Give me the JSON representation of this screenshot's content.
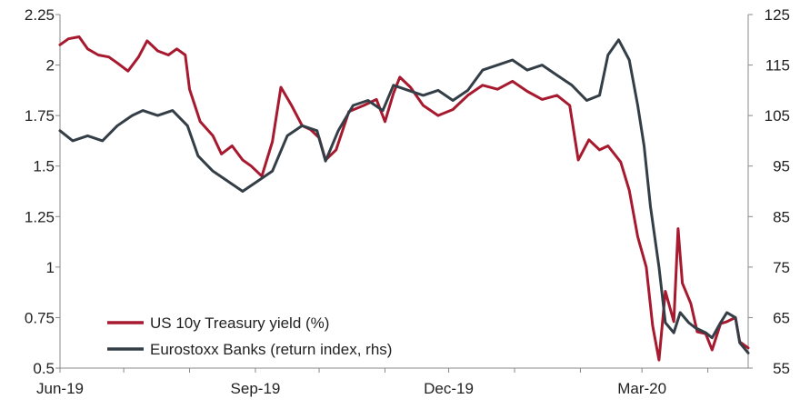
{
  "chart_data": {
    "type": "line",
    "title": "",
    "xlabel": "",
    "ylabel": "",
    "x_tick_labels": [
      "Jun-19",
      "Sep-19",
      "Dec-19",
      "Mar-20"
    ],
    "y_left": {
      "ylim": [
        0.5,
        2.25
      ],
      "ticks": [
        0.5,
        0.75,
        1,
        1.25,
        1.5,
        1.75,
        2,
        2.25
      ],
      "tick_labels": [
        "0.5",
        "0.75",
        "1",
        "1.25",
        "1.5",
        "1.75",
        "2",
        "2.25"
      ]
    },
    "y_right": {
      "ylim": [
        55,
        125
      ],
      "ticks": [
        55,
        65,
        75,
        85,
        95,
        105,
        115,
        125
      ],
      "tick_labels": [
        "55",
        "65",
        "75",
        "85",
        "95",
        "105",
        "115",
        "125"
      ]
    },
    "x_domain": [
      "2019-06-01",
      "2020-04-20"
    ],
    "grid": false,
    "legend_position": "bottom-left",
    "series": [
      {
        "name": "US 10y Treasury yield (%)",
        "axis": "left",
        "color": "#a6192e",
        "points": [
          [
            "2019-06-01",
            2.1
          ],
          [
            "2019-06-05",
            2.13
          ],
          [
            "2019-06-10",
            2.14
          ],
          [
            "2019-06-14",
            2.08
          ],
          [
            "2019-06-19",
            2.05
          ],
          [
            "2019-06-24",
            2.04
          ],
          [
            "2019-06-28",
            2.01
          ],
          [
            "2019-07-03",
            1.97
          ],
          [
            "2019-07-08",
            2.04
          ],
          [
            "2019-07-12",
            2.12
          ],
          [
            "2019-07-17",
            2.07
          ],
          [
            "2019-07-22",
            2.05
          ],
          [
            "2019-07-26",
            2.08
          ],
          [
            "2019-07-30",
            2.05
          ],
          [
            "2019-08-01",
            1.88
          ],
          [
            "2019-08-06",
            1.72
          ],
          [
            "2019-08-12",
            1.65
          ],
          [
            "2019-08-16",
            1.56
          ],
          [
            "2019-08-21",
            1.6
          ],
          [
            "2019-08-26",
            1.53
          ],
          [
            "2019-08-30",
            1.5
          ],
          [
            "2019-09-04",
            1.45
          ],
          [
            "2019-09-09",
            1.62
          ],
          [
            "2019-09-13",
            1.89
          ],
          [
            "2019-09-18",
            1.8
          ],
          [
            "2019-09-23",
            1.7
          ],
          [
            "2019-09-27",
            1.68
          ],
          [
            "2019-10-01",
            1.64
          ],
          [
            "2019-10-04",
            1.53
          ],
          [
            "2019-10-09",
            1.58
          ],
          [
            "2019-10-15",
            1.77
          ],
          [
            "2019-10-22",
            1.8
          ],
          [
            "2019-10-28",
            1.83
          ],
          [
            "2019-11-01",
            1.72
          ],
          [
            "2019-11-05",
            1.86
          ],
          [
            "2019-11-08",
            1.94
          ],
          [
            "2019-11-13",
            1.89
          ],
          [
            "2019-11-19",
            1.8
          ],
          [
            "2019-11-26",
            1.75
          ],
          [
            "2019-12-03",
            1.78
          ],
          [
            "2019-12-10",
            1.85
          ],
          [
            "2019-12-17",
            1.9
          ],
          [
            "2019-12-24",
            1.88
          ],
          [
            "2019-12-31",
            1.92
          ],
          [
            "2020-01-07",
            1.87
          ],
          [
            "2020-01-14",
            1.83
          ],
          [
            "2020-01-21",
            1.85
          ],
          [
            "2020-01-27",
            1.8
          ],
          [
            "2020-01-31",
            1.53
          ],
          [
            "2020-02-05",
            1.63
          ],
          [
            "2020-02-10",
            1.58
          ],
          [
            "2020-02-14",
            1.6
          ],
          [
            "2020-02-20",
            1.52
          ],
          [
            "2020-02-24",
            1.38
          ],
          [
            "2020-02-28",
            1.15
          ],
          [
            "2020-03-03",
            1.0
          ],
          [
            "2020-03-06",
            0.71
          ],
          [
            "2020-03-09",
            0.54
          ],
          [
            "2020-03-12",
            0.88
          ],
          [
            "2020-03-16",
            0.73
          ],
          [
            "2020-03-18",
            1.19
          ],
          [
            "2020-03-20",
            0.92
          ],
          [
            "2020-03-24",
            0.82
          ],
          [
            "2020-03-27",
            0.68
          ],
          [
            "2020-03-31",
            0.67
          ],
          [
            "2020-04-03",
            0.59
          ],
          [
            "2020-04-07",
            0.72
          ],
          [
            "2020-04-10",
            0.73
          ],
          [
            "2020-04-14",
            0.75
          ],
          [
            "2020-04-16",
            0.63
          ],
          [
            "2020-04-20",
            0.6
          ]
        ]
      },
      {
        "name": "Eurostoxx Banks (return index, rhs)",
        "axis": "right",
        "color": "#343e47",
        "points": [
          [
            "2019-06-01",
            102
          ],
          [
            "2019-06-07",
            100
          ],
          [
            "2019-06-14",
            101
          ],
          [
            "2019-06-21",
            100
          ],
          [
            "2019-06-28",
            103
          ],
          [
            "2019-07-05",
            105
          ],
          [
            "2019-07-10",
            106
          ],
          [
            "2019-07-17",
            105
          ],
          [
            "2019-07-24",
            106
          ],
          [
            "2019-07-31",
            103
          ],
          [
            "2019-08-05",
            97
          ],
          [
            "2019-08-12",
            94
          ],
          [
            "2019-08-19",
            92
          ],
          [
            "2019-08-26",
            90
          ],
          [
            "2019-09-02",
            92
          ],
          [
            "2019-09-09",
            94
          ],
          [
            "2019-09-16",
            101
          ],
          [
            "2019-09-23",
            103
          ],
          [
            "2019-09-30",
            102
          ],
          [
            "2019-10-04",
            96
          ],
          [
            "2019-10-10",
            102
          ],
          [
            "2019-10-17",
            107
          ],
          [
            "2019-10-24",
            108
          ],
          [
            "2019-10-31",
            106
          ],
          [
            "2019-11-05",
            111
          ],
          [
            "2019-11-12",
            110
          ],
          [
            "2019-11-19",
            109
          ],
          [
            "2019-11-26",
            110
          ],
          [
            "2019-12-03",
            108
          ],
          [
            "2019-12-10",
            110
          ],
          [
            "2019-12-17",
            114
          ],
          [
            "2019-12-24",
            115
          ],
          [
            "2019-12-31",
            116
          ],
          [
            "2020-01-07",
            114
          ],
          [
            "2020-01-14",
            115
          ],
          [
            "2020-01-21",
            113
          ],
          [
            "2020-01-28",
            111
          ],
          [
            "2020-02-04",
            108
          ],
          [
            "2020-02-10",
            109
          ],
          [
            "2020-02-14",
            117
          ],
          [
            "2020-02-19",
            120
          ],
          [
            "2020-02-24",
            116
          ],
          [
            "2020-02-28",
            107
          ],
          [
            "2020-03-02",
            99
          ],
          [
            "2020-03-05",
            87
          ],
          [
            "2020-03-09",
            75
          ],
          [
            "2020-03-12",
            64
          ],
          [
            "2020-03-16",
            62
          ],
          [
            "2020-03-19",
            66
          ],
          [
            "2020-03-23",
            64
          ],
          [
            "2020-03-26",
            63
          ],
          [
            "2020-03-31",
            62
          ],
          [
            "2020-04-03",
            61
          ],
          [
            "2020-04-07",
            64
          ],
          [
            "2020-04-10",
            66
          ],
          [
            "2020-04-14",
            65
          ],
          [
            "2020-04-16",
            60
          ],
          [
            "2020-04-20",
            58
          ]
        ]
      }
    ]
  }
}
